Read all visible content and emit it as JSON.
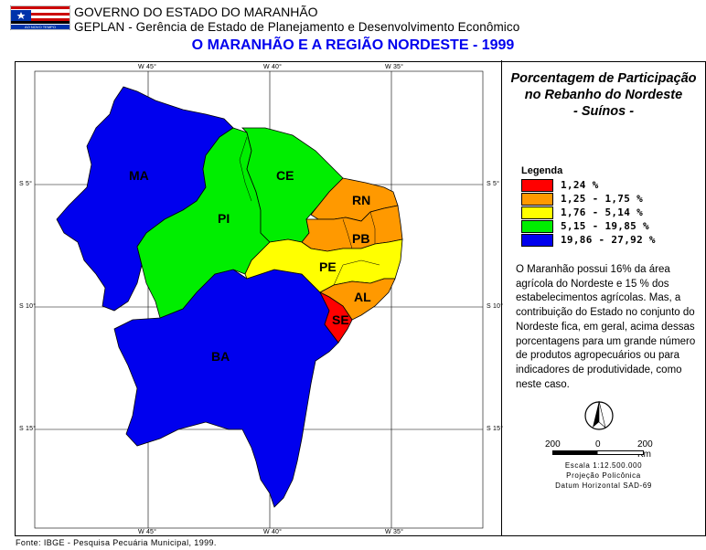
{
  "header": {
    "line1": "GOVERNO DO ESTADO DO MARANHÃO",
    "line2": "GEPLAN - Gerência de Estado de Planejamento e Desenvolvimento Econômico",
    "map_title": "O MARANHÃO E A REGIÃO NORDESTE - 1999",
    "logo_text": "AO NOVO TEMPO"
  },
  "side": {
    "title_line1": "Porcentagem de Participação",
    "title_line2": "no Rebanho do Nordeste",
    "title_line3": "- Suínos -",
    "legend_title": "Legenda",
    "legend": [
      {
        "label": "1,24 %",
        "color": "#ff0000"
      },
      {
        "label": "1,25 - 1,75 %",
        "color": "#ff9900"
      },
      {
        "label": "1,76 - 5,14 %",
        "color": "#ffff00"
      },
      {
        "label": "5,15 - 19,85 %",
        "color": "#00ee00"
      },
      {
        "label": "19,86 - 27,92 %",
        "color": "#0000ee"
      }
    ],
    "note": "O Maranhão possui 16% da área agrícola do Nordeste e 15 % dos estabelecimentos agrícolas. Mas, a contribuição do Estado no conjunto do Nordeste fica, em geral, acima dessas porcentagens para um grande número de produtos agropecuários ou para indicadores de produtividade, como neste caso.",
    "scale_left": "200",
    "scale_mid": "0",
    "scale_right": "200 Km",
    "scale_text": "Escala 1:12.500.000",
    "projection": "Projeção Policônica",
    "datum": "Datum Horizontal SAD-69"
  },
  "states": [
    {
      "name": "MA",
      "value_class": "19,86 - 27,92 %"
    },
    {
      "name": "PI",
      "value_class": "5,15 - 19,85 %"
    },
    {
      "name": "CE",
      "value_class": "5,15 - 19,85 %"
    },
    {
      "name": "RN",
      "value_class": "1,25 - 1,75 %"
    },
    {
      "name": "PB",
      "value_class": "1,25 - 1,75 %"
    },
    {
      "name": "PE",
      "value_class": "1,76 - 5,14 %"
    },
    {
      "name": "AL",
      "value_class": "1,25 - 1,75 %"
    },
    {
      "name": "SE",
      "value_class": "1,24 %"
    },
    {
      "name": "BA",
      "value_class": "19,86 - 27,92 %"
    }
  ],
  "grid": {
    "top_w45": "W 45°",
    "top_w40": "W 40°",
    "top_w35": "W 35°",
    "bot_w45": "W 45°",
    "bot_w40": "W 40°",
    "bot_w35": "W 35°",
    "left_s5": "S 5°",
    "left_s10": "S 10°",
    "left_s15": "S 15°",
    "right_s5": "S 5°",
    "right_s10": "S 10°",
    "right_s15": "S 15°"
  },
  "source": "Fonte: IBGE - Pesquisa Pecuária Municipal, 1999."
}
